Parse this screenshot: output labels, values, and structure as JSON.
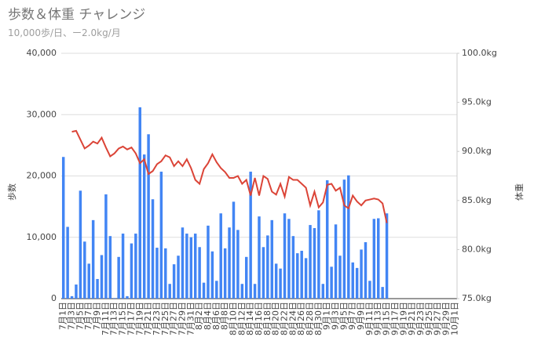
{
  "chart_data": {
    "type": "bar-line",
    "title": "歩数＆体重 チャレンジ",
    "subtitle": "10,000歩/日、ー2.0kg/月",
    "y_label": "歩数",
    "y2_label": "体重",
    "categories": [
      "7月1日",
      null,
      "7月3日",
      null,
      "7月5日",
      null,
      "7月7日",
      null,
      "7月9日",
      null,
      "7月11日",
      null,
      "7月13日",
      null,
      "7月15日",
      null,
      "7月17日",
      null,
      "7月19日",
      null,
      "7月21日",
      null,
      "7月23日",
      null,
      "7月25日",
      null,
      "7月27日",
      null,
      "7月29日",
      null,
      "7月31日",
      null,
      "8月2日",
      null,
      "8月4日",
      null,
      "8月6日",
      null,
      "8月8日",
      null,
      "8月10日",
      null,
      "8月12日",
      null,
      "8月14日",
      null,
      "8月16日",
      null,
      "8月18日",
      null,
      "8月20日",
      null,
      "8月22日",
      null,
      "8月24日",
      null,
      "8月26日",
      null,
      "8月28日",
      null,
      "8月30日",
      null,
      "9月1日",
      null,
      "9月3日",
      null,
      "9月5日",
      null,
      "9月7日",
      null,
      "9月9日",
      null,
      "9月11日",
      null,
      "9月13日",
      null,
      "9月15日",
      null,
      "9月17日",
      null,
      "9月19日",
      null,
      "9月21日",
      null,
      "9月23日",
      null,
      "9月25日",
      null,
      "9月27日",
      null,
      "9月29日",
      null,
      "10月1日"
    ],
    "series": [
      {
        "name": "歩数",
        "kind": "bar",
        "color": "#4285f4",
        "values": [
          23100,
          11700,
          400,
          2300,
          17600,
          9300,
          5700,
          12800,
          3200,
          7100,
          17000,
          10200,
          100,
          6800,
          10600,
          400,
          9000,
          10600,
          31200,
          23500,
          26800,
          16200,
          8300,
          20700,
          8200,
          2400,
          5600,
          7000,
          11600,
          10600,
          10000,
          10600,
          8400,
          2600,
          11900,
          7700,
          2900,
          13900,
          8200,
          11600,
          15800,
          11200,
          2400,
          6800,
          20700,
          2400,
          13400,
          8400,
          10300,
          12800,
          5700,
          4900,
          13900,
          13000,
          10200,
          7400,
          7800,
          6600,
          12000,
          11500,
          14400,
          2400,
          19300,
          5200,
          12100,
          7000,
          19400,
          20100,
          5900,
          5000,
          8000,
          9200,
          2900,
          13000,
          13100,
          1900,
          13900,
          null,
          null,
          null,
          null,
          null,
          null,
          null,
          null,
          null,
          null,
          null,
          null,
          null,
          null,
          null,
          null
        ]
      },
      {
        "name": "体重",
        "kind": "line",
        "axis": "y2",
        "color": "#db4437",
        "values": [
          null,
          null,
          92.0,
          92.1,
          91.2,
          90.3,
          90.6,
          91.0,
          90.8,
          91.4,
          90.4,
          89.5,
          89.8,
          90.3,
          90.5,
          90.2,
          90.4,
          89.8,
          88.8,
          89.2,
          87.7,
          88.0,
          88.7,
          89.0,
          89.6,
          89.4,
          88.5,
          89.0,
          88.5,
          89.2,
          88.3,
          87.1,
          86.7,
          88.2,
          88.8,
          89.7,
          88.9,
          88.3,
          87.9,
          87.3,
          87.3,
          87.5,
          86.7,
          87.1,
          85.5,
          87.3,
          85.5,
          87.5,
          87.2,
          85.9,
          85.6,
          86.7,
          85.4,
          87.4,
          87.1,
          87.1,
          86.7,
          86.3,
          84.5,
          85.9,
          84.3,
          84.8,
          86.6,
          86.7,
          86.0,
          86.3,
          84.5,
          84.2,
          85.5,
          84.9,
          84.5,
          85.0,
          85.1,
          85.2,
          85.1,
          84.7,
          82.7,
          null,
          null,
          null,
          null,
          null,
          null,
          null,
          null,
          null,
          null,
          null,
          null,
          null,
          null,
          null,
          null
        ]
      }
    ],
    "ylim": [
      0,
      40000
    ],
    "yticks": [
      0,
      {
        "value": 10000,
        "label": "10,000"
      },
      {
        "value": 20000,
        "label": "20,000"
      },
      {
        "value": 30000,
        "label": "30,000"
      },
      {
        "value": 40000,
        "label": "40,000"
      }
    ],
    "y2lim": [
      75,
      100
    ],
    "y2ticks": [
      {
        "value": 75,
        "label": "75.0kg"
      },
      {
        "value": 80,
        "label": "80.0kg"
      },
      {
        "value": 85,
        "label": "85.0kg"
      },
      {
        "value": 90,
        "label": "90.0kg"
      },
      {
        "value": 95,
        "label": "95.0kg"
      },
      {
        "value": 100,
        "label": "100.0kg"
      }
    ],
    "grid": true
  }
}
